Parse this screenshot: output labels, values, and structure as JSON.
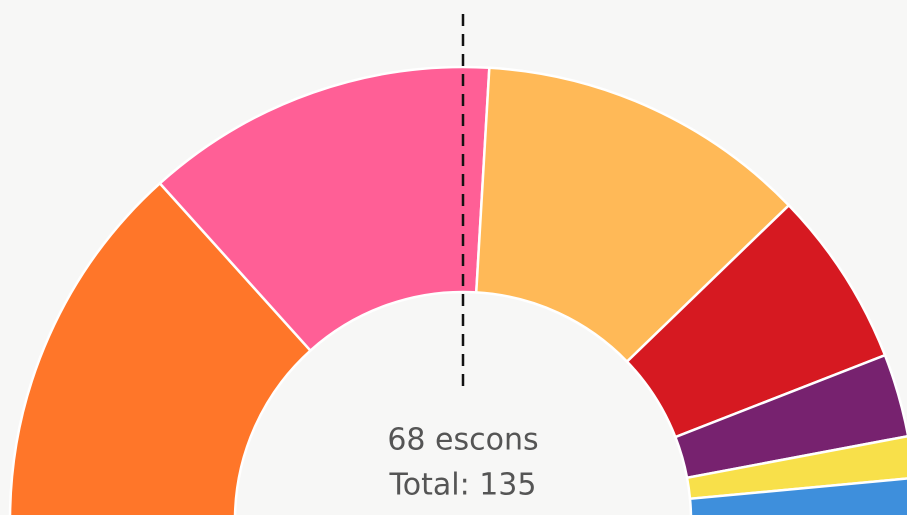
{
  "chart_data": {
    "type": "half-donut",
    "values": [
      36,
      34,
      32,
      17,
      8,
      4,
      4
    ],
    "colors": [
      "#ff7629",
      "#ff5f96",
      "#ffb957",
      "#d61921",
      "#77226f",
      "#f8e04a",
      "#3e8fdc"
    ],
    "majority_label": "68 escons",
    "total_label": "Total: 135"
  }
}
